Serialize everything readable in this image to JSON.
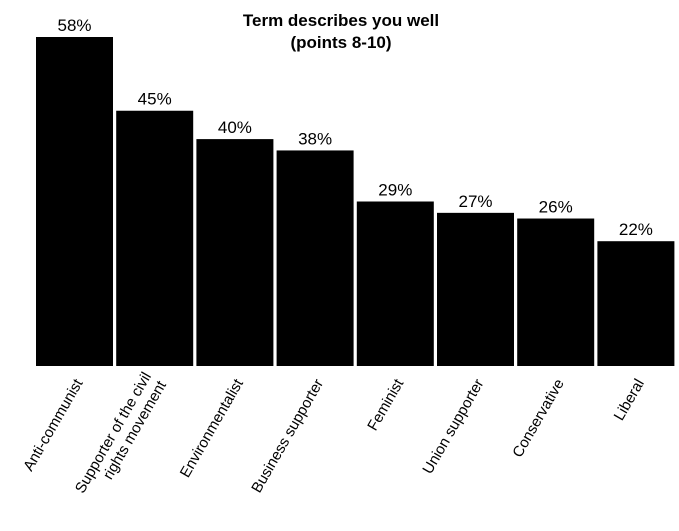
{
  "chart_data": {
    "type": "bar",
    "title": [
      "Term describes you well",
      "(points 8-10)"
    ],
    "categories": [
      [
        "Anti-communist"
      ],
      [
        "Supporter of the civil",
        "rights movement"
      ],
      [
        "Environmentalist"
      ],
      [
        "Business supporter"
      ],
      [
        "Feminist"
      ],
      [
        "Union supporter"
      ],
      [
        "Conservative"
      ],
      [
        "Liberal"
      ]
    ],
    "values": [
      58,
      45,
      40,
      38,
      29,
      27,
      26,
      22
    ],
    "value_labels": [
      "58%",
      "45%",
      "40%",
      "38%",
      "29%",
      "27%",
      "26%",
      "22%"
    ],
    "ylim": [
      0,
      58
    ],
    "grid": false,
    "bar_color": "#000000"
  }
}
